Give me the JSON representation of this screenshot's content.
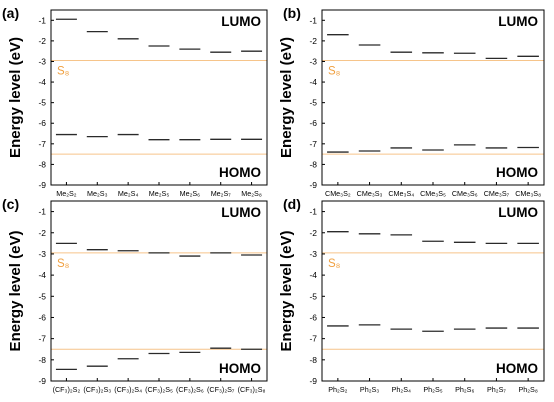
{
  "colors": {
    "frame": "#000000",
    "level_line": "#2a2a2a",
    "reference_line": "#f6c48a",
    "reference_text": "#f0a040"
  },
  "chart_data": [
    {
      "type": "scatter",
      "panel_label": "(a)",
      "ylabel": "Energy level (eV)",
      "ylim": [
        -9,
        -0.5
      ],
      "yticks": [
        "-1",
        "-2",
        "-3",
        "-4",
        "-5",
        "-6",
        "-7",
        "-8",
        "-9"
      ],
      "categories": [
        "Me₂S₂",
        "Me₂S₃",
        "Me₂S₄",
        "Me₂S₅",
        "Me₂S₆",
        "Me₂S₇",
        "Me₂S₈"
      ],
      "series": [
        {
          "name": "LUMO",
          "values": [
            -0.95,
            -1.55,
            -1.9,
            -2.25,
            -2.4,
            -2.55,
            -2.5
          ]
        },
        {
          "name": "HOMO",
          "values": [
            -6.55,
            -6.65,
            -6.55,
            -6.8,
            -6.8,
            -6.78,
            -6.78
          ]
        }
      ],
      "reference": {
        "label": "S₈",
        "lumo": -2.95,
        "homo": -7.5
      }
    },
    {
      "type": "scatter",
      "panel_label": "(b)",
      "ylabel": "Energy level (eV)",
      "ylim": [
        -9,
        -0.5
      ],
      "yticks": [
        "-1",
        "-2",
        "-3",
        "-4",
        "-5",
        "-6",
        "-7",
        "-8",
        "-9"
      ],
      "categories": [
        "CMe₃S₂",
        "CMe₃S₃",
        "CMe₃S₄",
        "CMe₃S₅",
        "CMe₃S₆",
        "CMe₃S₇",
        "CMe₃S₈"
      ],
      "series": [
        {
          "name": "LUMO",
          "values": [
            -1.7,
            -2.2,
            -2.55,
            -2.58,
            -2.6,
            -2.85,
            -2.75
          ]
        },
        {
          "name": "HOMO",
          "values": [
            -7.4,
            -7.35,
            -7.2,
            -7.3,
            -7.05,
            -7.2,
            -7.18
          ]
        }
      ],
      "reference": {
        "label": "S₈",
        "lumo": -2.95,
        "homo": -7.5
      }
    },
    {
      "type": "scatter",
      "panel_label": "(c)",
      "ylabel": "Energy level (eV)",
      "ylim": [
        -9,
        -0.5
      ],
      "yticks": [
        "-1",
        "-2",
        "-3",
        "-4",
        "-5",
        "-6",
        "-7",
        "-8",
        "-9"
      ],
      "categories": [
        "(CF₃)₂S₂",
        "(CF₃)₂S₃",
        "(CF₃)₂S₄",
        "(CF₃)₂S₅",
        "(CF₃)₂S₆",
        "(CF₃)₂S₇",
        "(CF₃)₂S₈"
      ],
      "series": [
        {
          "name": "LUMO",
          "values": [
            -2.5,
            -2.8,
            -2.85,
            -2.95,
            -3.1,
            -2.95,
            -3.05
          ]
        },
        {
          "name": "HOMO",
          "values": [
            -8.45,
            -8.3,
            -7.95,
            -7.7,
            -7.65,
            -7.45,
            -7.5
          ]
        }
      ],
      "reference": {
        "label": "S₈",
        "lumo": -2.95,
        "homo": -7.5
      }
    },
    {
      "type": "scatter",
      "panel_label": "(d)",
      "ylabel": "Energy level (eV)",
      "ylim": [
        -9,
        -0.5
      ],
      "yticks": [
        "-1",
        "-2",
        "-3",
        "-4",
        "-5",
        "-6",
        "-7",
        "-8",
        "-9"
      ],
      "categories": [
        "Ph₂S₂",
        "Ph₂S₃",
        "Ph₂S₄",
        "Ph₂S₅",
        "Ph₂S₆",
        "Ph₂S₇",
        "Ph₂S₈"
      ],
      "series": [
        {
          "name": "LUMO",
          "values": [
            -1.95,
            -2.05,
            -2.1,
            -2.4,
            -2.45,
            -2.5,
            -2.5
          ]
        },
        {
          "name": "HOMO",
          "values": [
            -6.4,
            -6.35,
            -6.55,
            -6.65,
            -6.55,
            -6.5,
            -6.5
          ]
        }
      ],
      "reference": {
        "label": "S₈",
        "lumo": -2.95,
        "homo": -7.5
      }
    }
  ]
}
